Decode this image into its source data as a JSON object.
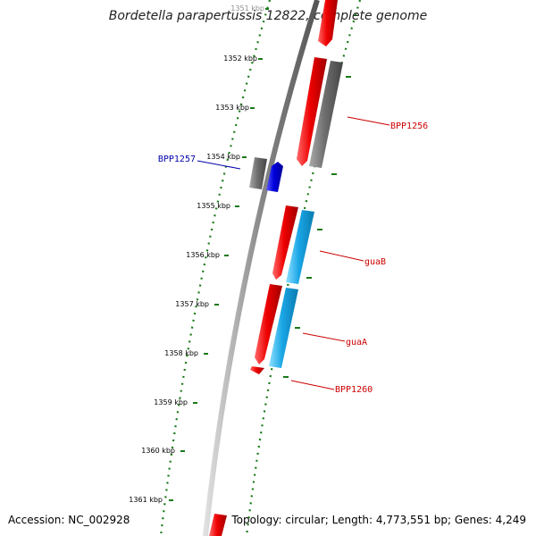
{
  "header": {
    "title": "Bordetella parapertussis 12822, complete genome"
  },
  "footer": {
    "accession": "Accession: NC_002928",
    "summary": "Topology: circular; Length: 4,773,551 bp; Genes: 4,249"
  },
  "colors": {
    "backbone": "#888888",
    "tick": "#1a7a1a",
    "forward_gene": "#ee0000",
    "grey_gene": "#777777",
    "rna_gene": "#1aa6e6",
    "blue_gene": "#0000dd",
    "label_red": "#cc0000",
    "label_blue": "#0000aa"
  },
  "position_labels": [
    "1351 kbp",
    "1352 kbp",
    "1353 kbp",
    "1354 kbp",
    "1355 kbp",
    "1356 kbp",
    "1357 kbp",
    "1358 kbp",
    "1359 kbp",
    "1360 kbp",
    "1361 kbp"
  ],
  "gene_labels": {
    "bpp1256": "BPP1256",
    "bpp1257": "BPP1257",
    "guab": "guaB",
    "guaa": "guaA",
    "bpp1260": "BPP1260"
  }
}
